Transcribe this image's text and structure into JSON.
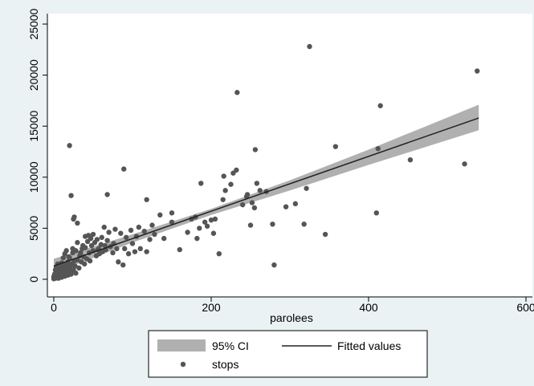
{
  "chart_data": {
    "type": "scatter",
    "title": "",
    "xlabel": "parolees",
    "ylabel": "",
    "xlim": [
      0,
      600
    ],
    "ylim": [
      0,
      25000
    ],
    "x_ticks": [
      0,
      200,
      400,
      600
    ],
    "x_tick_labels": [
      "0",
      "200",
      "400",
      "600"
    ],
    "y_ticks": [
      0,
      5000,
      10000,
      15000,
      20000,
      25000
    ],
    "y_tick_labels": [
      "0",
      "5000",
      "10000",
      "15000",
      "20000",
      "25000"
    ],
    "grid": false,
    "legend_position": "bottom",
    "colors": {
      "outer_background": "#eaf2f3",
      "plot_background": "#ffffff",
      "points": "#555555",
      "fitted_line": "#222222",
      "ci_band": "#b0b0b0",
      "axis": "#000000"
    },
    "series": [
      {
        "name": "stops",
        "kind": "scatter",
        "points": [
          [
            0,
            50
          ],
          [
            0,
            250
          ],
          [
            1,
            150
          ],
          [
            1,
            500
          ],
          [
            2,
            100
          ],
          [
            2,
            900
          ],
          [
            3,
            300
          ],
          [
            3,
            1200
          ],
          [
            4,
            200
          ],
          [
            4,
            700
          ],
          [
            5,
            400
          ],
          [
            5,
            1500
          ],
          [
            6,
            100
          ],
          [
            6,
            800
          ],
          [
            7,
            600
          ],
          [
            8,
            300
          ],
          [
            8,
            1100
          ],
          [
            9,
            900
          ],
          [
            10,
            200
          ],
          [
            10,
            1600
          ],
          [
            11,
            700
          ],
          [
            12,
            400
          ],
          [
            12,
            1200
          ],
          [
            13,
            900
          ],
          [
            14,
            300
          ],
          [
            15,
            1300
          ],
          [
            16,
            600
          ],
          [
            17,
            1000
          ],
          [
            18,
            400
          ],
          [
            18,
            1700
          ],
          [
            20,
            800
          ],
          [
            20,
            2100
          ],
          [
            21,
            1200
          ],
          [
            22,
            500
          ],
          [
            23,
            1500
          ],
          [
            24,
            2600
          ],
          [
            25,
            900
          ],
          [
            26,
            1800
          ],
          [
            27,
            1300
          ],
          [
            28,
            600
          ],
          [
            30,
            1900
          ],
          [
            30,
            3600
          ],
          [
            32,
            1100
          ],
          [
            33,
            2300
          ],
          [
            35,
            1700
          ],
          [
            36,
            3000
          ],
          [
            38,
            2200
          ],
          [
            39,
            1500
          ],
          [
            40,
            3100
          ],
          [
            40,
            4200
          ],
          [
            42,
            2000
          ],
          [
            43,
            3700
          ],
          [
            45,
            2600
          ],
          [
            46,
            1800
          ],
          [
            47,
            4000
          ],
          [
            48,
            3300
          ],
          [
            50,
            2800
          ],
          [
            50,
            4400
          ],
          [
            52,
            3600
          ],
          [
            54,
            2300
          ],
          [
            55,
            3900
          ],
          [
            57,
            3000
          ],
          [
            58,
            2500
          ],
          [
            60,
            3400
          ],
          [
            61,
            4100
          ],
          [
            62,
            2700
          ],
          [
            64,
            5100
          ],
          [
            65,
            3300
          ],
          [
            66,
            2900
          ],
          [
            68,
            3800
          ],
          [
            70,
            4600
          ],
          [
            72,
            3200
          ],
          [
            75,
            2600
          ],
          [
            76,
            3500
          ],
          [
            78,
            4900
          ],
          [
            80,
            3000
          ],
          [
            82,
            1700
          ],
          [
            85,
            4500
          ],
          [
            88,
            1400
          ],
          [
            90,
            3000
          ],
          [
            92,
            4100
          ],
          [
            95,
            2500
          ],
          [
            98,
            4800
          ],
          [
            100,
            3500
          ],
          [
            103,
            2700
          ],
          [
            105,
            4200
          ],
          [
            108,
            5100
          ],
          [
            110,
            3000
          ],
          [
            115,
            4700
          ],
          [
            118,
            2700
          ],
          [
            122,
            3900
          ],
          [
            125,
            5300
          ],
          [
            128,
            4400
          ],
          [
            135,
            6300
          ],
          [
            140,
            4000
          ],
          [
            150,
            5600
          ],
          [
            160,
            2900
          ],
          [
            170,
            4600
          ],
          [
            175,
            5900
          ],
          [
            180,
            6100
          ],
          [
            182,
            4000
          ],
          [
            185,
            5000
          ],
          [
            192,
            5600
          ],
          [
            195,
            5200
          ],
          [
            200,
            5800
          ],
          [
            203,
            4500
          ],
          [
            205,
            5900
          ],
          [
            210,
            2500
          ],
          [
            215,
            7800
          ],
          [
            218,
            8700
          ],
          [
            225,
            9300
          ],
          [
            228,
            10400
          ],
          [
            232,
            10700
          ],
          [
            240,
            7300
          ],
          [
            245,
            8100
          ],
          [
            250,
            5300
          ],
          [
            252,
            7500
          ],
          [
            255,
            7000
          ],
          [
            256,
            12700
          ],
          [
            258,
            9400
          ],
          [
            262,
            8700
          ],
          [
            270,
            8600
          ],
          [
            278,
            5400
          ],
          [
            280,
            1400
          ],
          [
            295,
            7100
          ],
          [
            307,
            7400
          ],
          [
            318,
            5400
          ],
          [
            321,
            8900
          ],
          [
            325,
            22800
          ],
          [
            345,
            4400
          ],
          [
            358,
            13000
          ],
          [
            410,
            6500
          ],
          [
            412,
            12800
          ],
          [
            415,
            17000
          ],
          [
            453,
            11700
          ],
          [
            522,
            11300
          ],
          [
            538,
            20400
          ],
          [
            20,
            13100
          ],
          [
            22,
            8200
          ],
          [
            25,
            5900
          ],
          [
            26,
            6100
          ],
          [
            30,
            5500
          ],
          [
            68,
            8300
          ],
          [
            89,
            10800
          ],
          [
            118,
            7800
          ],
          [
            150,
            6500
          ],
          [
            187,
            9400
          ],
          [
            216,
            10100
          ],
          [
            233,
            18300
          ],
          [
            246,
            8300
          ],
          [
            12,
            2100
          ],
          [
            14,
            2500
          ],
          [
            16,
            2800
          ],
          [
            19,
            2200
          ],
          [
            24,
            3000
          ],
          [
            28,
            2800
          ],
          [
            34,
            2600
          ],
          [
            37,
            3300
          ],
          [
            44,
            4300
          ],
          [
            56,
            2900
          ],
          [
            2,
            400
          ],
          [
            3,
            600
          ],
          [
            4,
            1000
          ],
          [
            6,
            300
          ],
          [
            7,
            1300
          ],
          [
            9,
            500
          ],
          [
            11,
            1000
          ],
          [
            13,
            1500
          ],
          [
            15,
            700
          ],
          [
            17,
            1400
          ]
        ]
      },
      {
        "name": "Fitted values",
        "kind": "line",
        "x": [
          0,
          540
        ],
        "y": [
          1300,
          15800
        ]
      },
      {
        "name": "95% CI",
        "kind": "band",
        "x": [
          0,
          100,
          200,
          300,
          400,
          540
        ],
        "lower": [
          600,
          3600,
          6300,
          8700,
          11200,
          14600
        ],
        "upper": [
          2000,
          4400,
          6900,
          9700,
          12700,
          17100
        ]
      }
    ],
    "legend": {
      "row1": [
        "95% CI",
        "Fitted values"
      ],
      "row2": [
        "stops"
      ]
    }
  }
}
